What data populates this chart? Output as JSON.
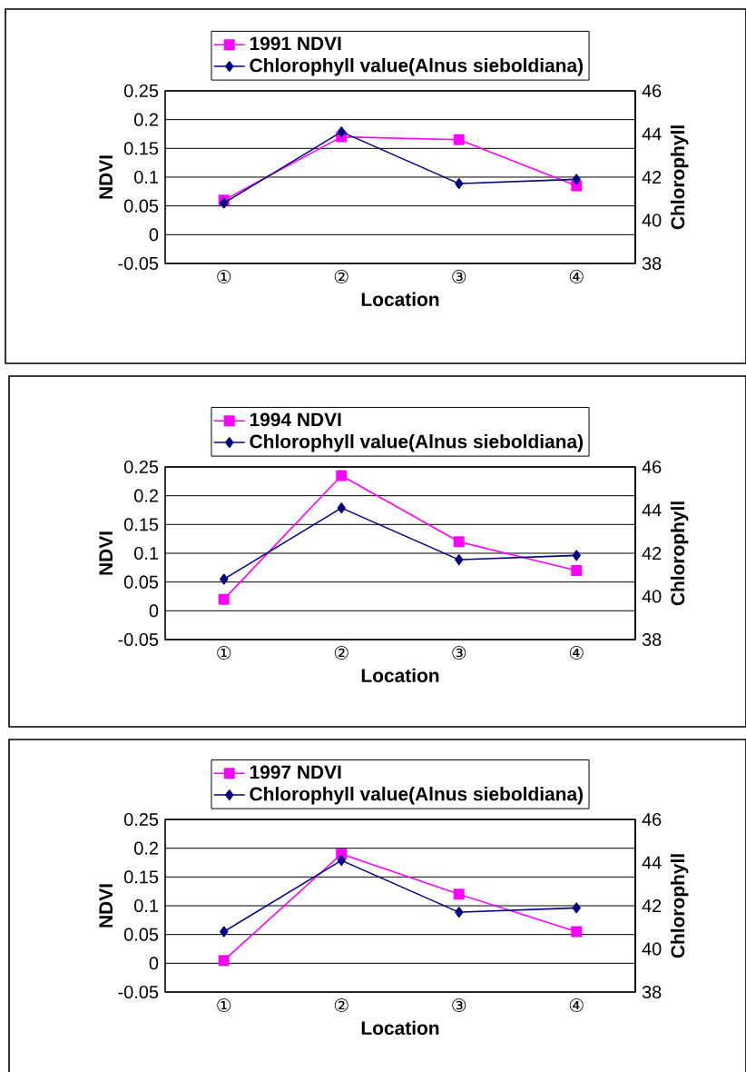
{
  "chart_data": [
    {
      "type": "line",
      "categories": [
        "①",
        "②",
        "③",
        "④"
      ],
      "xlabel": "Location",
      "ylabel": "NDVI",
      "y2label": "Chlorophyll",
      "ylim": [
        -0.05,
        0.25
      ],
      "yticks": [
        -0.05,
        0,
        0.05,
        0.1,
        0.15,
        0.2,
        0.25
      ],
      "y2lim": [
        38,
        46
      ],
      "y2ticks": [
        38,
        40,
        42,
        44,
        46
      ],
      "grid": "y",
      "legend": "top",
      "series": [
        {
          "name": "1991 NDVI",
          "color": "#ff00ff",
          "marker": "square",
          "values": [
            0.06,
            0.17,
            0.165,
            0.085
          ]
        },
        {
          "name": "Chlorophyll value(Alnus sieboldiana)",
          "color": "#000080",
          "marker": "diamond",
          "axis": "y2",
          "values": [
            40.8,
            44.1,
            41.7,
            41.9
          ]
        }
      ]
    },
    {
      "type": "line",
      "categories": [
        "①",
        "②",
        "③",
        "④"
      ],
      "xlabel": "Location",
      "ylabel": "NDVI",
      "y2label": "Chlorophyll",
      "ylim": [
        -0.05,
        0.25
      ],
      "yticks": [
        -0.05,
        0,
        0.05,
        0.1,
        0.15,
        0.2,
        0.25
      ],
      "y2lim": [
        38,
        46
      ],
      "y2ticks": [
        38,
        40,
        42,
        44,
        46
      ],
      "grid": "y",
      "legend": "top",
      "series": [
        {
          "name": "1994 NDVI",
          "color": "#ff00ff",
          "marker": "square",
          "values": [
            0.02,
            0.235,
            0.12,
            0.07
          ]
        },
        {
          "name": "Chlorophyll value(Alnus sieboldiana)",
          "color": "#000080",
          "marker": "diamond",
          "axis": "y2",
          "values": [
            40.8,
            44.1,
            41.7,
            41.9
          ]
        }
      ]
    },
    {
      "type": "line",
      "categories": [
        "①",
        "②",
        "③",
        "④"
      ],
      "xlabel": "Location",
      "ylabel": "NDVI",
      "y2label": "Chlorophyll",
      "ylim": [
        -0.05,
        0.25
      ],
      "yticks": [
        -0.05,
        0,
        0.05,
        0.1,
        0.15,
        0.2,
        0.25
      ],
      "y2lim": [
        38,
        46
      ],
      "y2ticks": [
        38,
        40,
        42,
        44,
        46
      ],
      "grid": "y",
      "legend": "top",
      "series": [
        {
          "name": "1997 NDVI",
          "color": "#ff00ff",
          "marker": "square",
          "values": [
            0.005,
            0.19,
            0.12,
            0.055
          ]
        },
        {
          "name": "Chlorophyll value(Alnus sieboldiana)",
          "color": "#000080",
          "marker": "diamond",
          "axis": "y2",
          "values": [
            40.8,
            44.1,
            41.7,
            41.9
          ]
        }
      ]
    }
  ]
}
